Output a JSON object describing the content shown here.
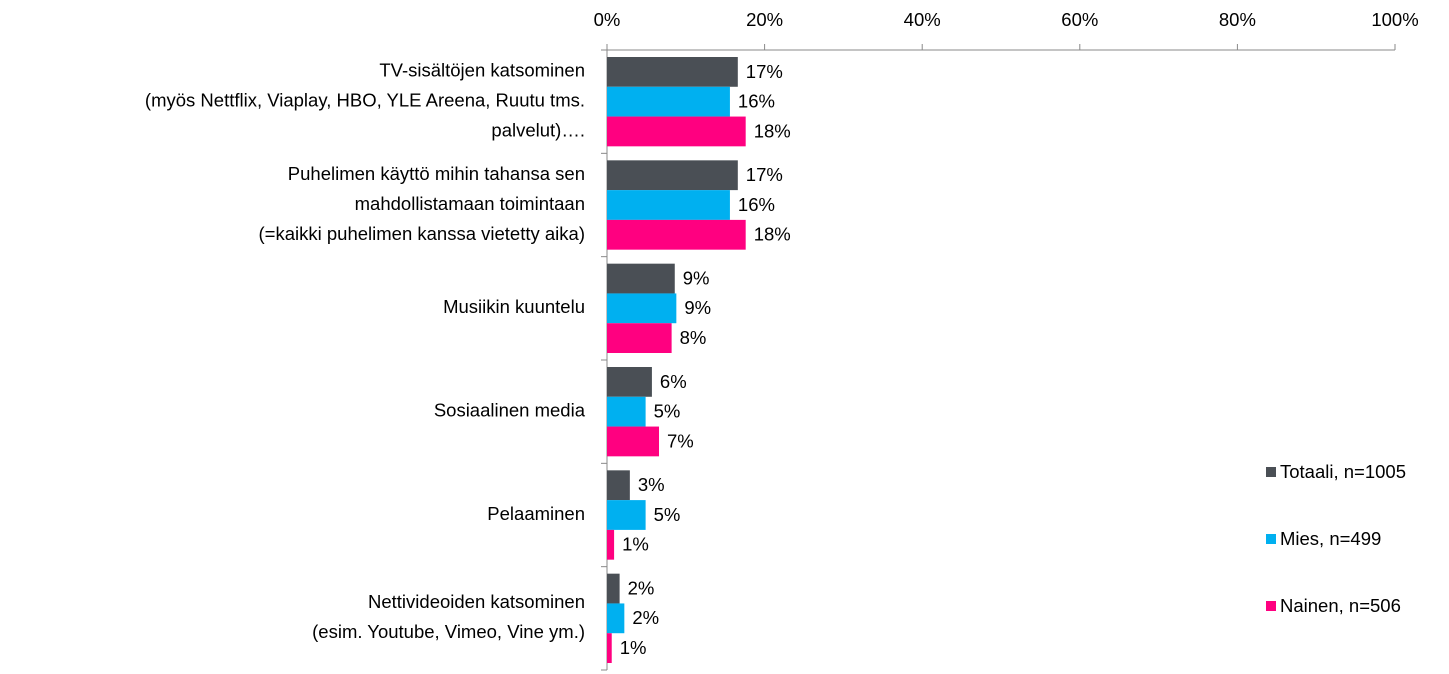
{
  "chart_data": {
    "type": "bar",
    "orientation": "horizontal",
    "categories": [
      [
        "TV-sisältöjen katsominen",
        "(myös Nettflix, Viaplay, HBO, YLE Areena, Ruutu tms.",
        "palvelut)…."
      ],
      [
        "Puhelimen käyttö mihin tahansa sen",
        "mahdollistamaan toimintaan",
        "(=kaikki puhelimen kanssa vietetty aika)"
      ],
      [
        "Musiikin kuuntelu"
      ],
      [
        "Sosiaalinen media"
      ],
      [
        "Pelaaminen"
      ],
      [
        "Nettivideoiden katsominen",
        "(esim. Youtube, Vimeo, Vine ym.)"
      ]
    ],
    "series": [
      {
        "name": "Totaali, n=1005",
        "color": "#4a4f55",
        "values": [
          16.6,
          16.6,
          8.6,
          5.7,
          2.9,
          1.6
        ],
        "value_labels": [
          "17%",
          "17%",
          "9%",
          "6%",
          "3%",
          "2%"
        ]
      },
      {
        "name": "Mies, n=499",
        "color": "#00b0f0",
        "values": [
          15.6,
          15.6,
          8.8,
          4.9,
          4.9,
          2.2
        ],
        "value_labels": [
          "16%",
          "16%",
          "9%",
          "5%",
          "5%",
          "2%"
        ]
      },
      {
        "name": "Nainen, n=506",
        "color": "#ff0080",
        "values": [
          17.6,
          17.6,
          8.2,
          6.6,
          0.9,
          0.6
        ],
        "value_labels": [
          "18%",
          "18%",
          "8%",
          "7%",
          "1%",
          "1%"
        ]
      }
    ],
    "xlim": [
      0,
      100
    ],
    "xticks": [
      {
        "value": 0,
        "label": "0%"
      },
      {
        "value": 20,
        "label": "20%"
      },
      {
        "value": 40,
        "label": "40%"
      },
      {
        "value": 60,
        "label": "60%"
      },
      {
        "value": 80,
        "label": "80%"
      },
      {
        "value": 100,
        "label": "100%"
      }
    ],
    "legend": "right",
    "grid": false
  }
}
